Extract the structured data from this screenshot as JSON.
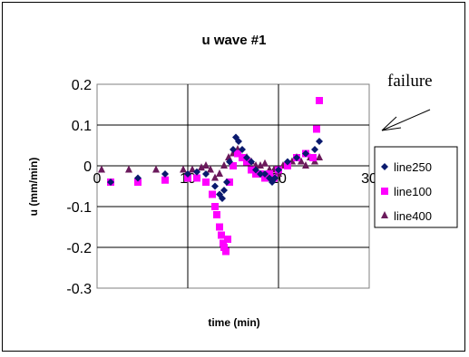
{
  "chart_data": {
    "type": "scatter",
    "title": "u wave #1",
    "xlabel": "time (min)",
    "ylabel": "u (mm/min)",
    "xlim": [
      0,
      30
    ],
    "ylim": [
      -0.3,
      0.2
    ],
    "x_ticks": [
      0,
      10,
      20,
      30
    ],
    "y_ticks": [
      0.2,
      0.1,
      0,
      -0.1,
      -0.2,
      -0.3
    ],
    "y_tick_labels": [
      "0.2",
      "0.1",
      "0",
      "-0.1",
      "-0.2",
      "-0.3"
    ],
    "grid": true,
    "legend_position": "right",
    "annotation": "failure",
    "series": [
      {
        "name": "line250",
        "marker": "diamond",
        "color": "#0a1a6e",
        "x": [
          1.5,
          4.5,
          7.5,
          10.0,
          11.0,
          12.0,
          13.0,
          13.5,
          13.8,
          14.0,
          14.3,
          14.6,
          15.0,
          15.3,
          15.6,
          16.0,
          16.5,
          17.0,
          17.5,
          18.0,
          18.5,
          19.0,
          19.3,
          19.6,
          20.0,
          21.0,
          22.0,
          23.0,
          24.0,
          24.5
        ],
        "y": [
          -0.04,
          -0.03,
          -0.02,
          -0.02,
          -0.015,
          -0.02,
          -0.05,
          -0.07,
          -0.08,
          -0.06,
          -0.04,
          0.01,
          0.04,
          0.07,
          0.06,
          0.04,
          0.02,
          0.01,
          -0.01,
          -0.02,
          -0.02,
          -0.03,
          -0.04,
          -0.03,
          -0.01,
          0.01,
          0.02,
          0.03,
          0.04,
          0.06
        ]
      },
      {
        "name": "line100",
        "marker": "square",
        "color": "#ff00ff",
        "x": [
          1.5,
          4.5,
          7.5,
          10.0,
          11.0,
          12.0,
          12.7,
          13.0,
          13.2,
          13.5,
          13.7,
          13.9,
          14.0,
          14.2,
          14.4,
          14.6,
          15.0,
          15.5,
          16.0,
          16.5,
          17.0,
          17.5,
          18.0,
          18.5,
          19.0,
          19.5,
          20.0,
          21.0,
          22.0,
          23.0,
          23.8,
          24.2,
          24.5
        ],
        "y": [
          -0.04,
          -0.04,
          -0.035,
          -0.03,
          -0.03,
          -0.04,
          -0.07,
          -0.1,
          -0.12,
          -0.15,
          -0.17,
          -0.19,
          -0.2,
          -0.21,
          -0.18,
          -0.04,
          0.0,
          0.03,
          0.02,
          0.01,
          -0.01,
          -0.02,
          -0.02,
          -0.03,
          -0.02,
          -0.03,
          -0.01,
          0.0,
          0.02,
          0.03,
          0.02,
          0.09,
          0.16
        ]
      },
      {
        "name": "line400",
        "marker": "triangle",
        "color": "#6b1a5c",
        "x": [
          0.5,
          3.5,
          6.5,
          9.5,
          10.5,
          11.5,
          12.0,
          12.5,
          13.0,
          13.5,
          14.0,
          14.5,
          15.0,
          15.5,
          16.0,
          16.5,
          17.0,
          17.5,
          18.0,
          18.5,
          19.0,
          19.5,
          20.0,
          20.5,
          21.0,
          21.5,
          22.0,
          22.5,
          23.0,
          23.5,
          24.0,
          24.5
        ],
        "y": [
          -0.01,
          -0.01,
          -0.01,
          -0.01,
          -0.01,
          -0.005,
          0.0,
          -0.01,
          -0.03,
          -0.02,
          0.0,
          0.02,
          0.03,
          0.04,
          0.02,
          0.02,
          0.01,
          0.0,
          0.0,
          0.005,
          -0.01,
          -0.01,
          -0.02,
          0.0,
          0.0,
          0.01,
          0.02,
          0.01,
          0.0,
          0.02,
          0.01,
          0.02
        ]
      }
    ]
  }
}
